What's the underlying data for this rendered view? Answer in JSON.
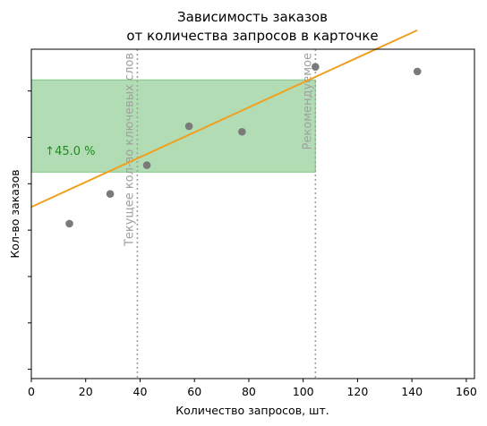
{
  "chart_data": {
    "type": "scatter",
    "title_lines": [
      "Зависимость заказов",
      "от количества запросов в карточке"
    ],
    "xlabel": "Количество запросов, шт.",
    "ylabel": "Кол-во заказов",
    "xlim": [
      0,
      163
    ],
    "ylim": [
      -0.2,
      6.9
    ],
    "x_ticks": [
      0,
      20,
      40,
      60,
      80,
      100,
      120,
      140,
      160
    ],
    "y_ticks": [
      0,
      1,
      2,
      3,
      4,
      5,
      6
    ],
    "y_tick_labels_shown": false,
    "grid": false,
    "points": [
      {
        "x": 14,
        "y": 3.14
      },
      {
        "x": 29,
        "y": 3.78
      },
      {
        "x": 42.5,
        "y": 4.4
      },
      {
        "x": 58,
        "y": 5.24
      },
      {
        "x": 77.5,
        "y": 5.12
      },
      {
        "x": 104.5,
        "y": 6.52
      },
      {
        "x": 142,
        "y": 6.42
      }
    ],
    "point_color": "#7a7a7a",
    "trend_line": {
      "x": [
        0,
        142
      ],
      "y": [
        3.5,
        7.31
      ],
      "color": "#f0a020"
    },
    "highlight_band": {
      "y": [
        4.25,
        6.24
      ],
      "x": [
        0,
        104.5
      ],
      "color": "#4caf50"
    },
    "vertical_lines": [
      {
        "x": 39,
        "label": "Текущее кол-во ключевых слов",
        "color": "#a0a0a0"
      },
      {
        "x": 104.5,
        "label": "Рекомендуемое",
        "color": "#a0a0a0"
      }
    ],
    "annotation": {
      "text": "↑45.0 %",
      "x": 5,
      "y": 4.62,
      "color": "#1f8a1f"
    }
  }
}
